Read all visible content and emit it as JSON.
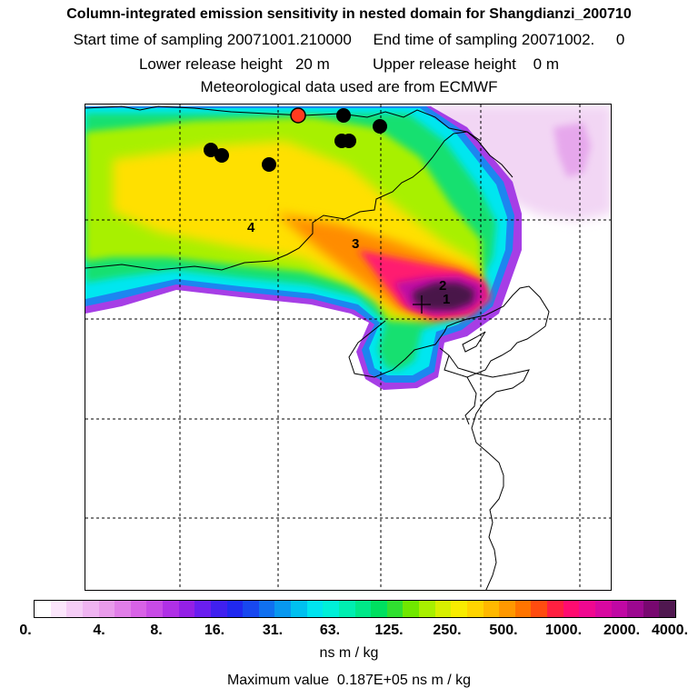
{
  "title": {
    "line1": "Column-integrated emission sensitivity in nested domain for Shangdianzi_200710",
    "line2": "Start time of sampling 20071001.210000     End time of sampling 20071002.     0",
    "line3": "Lower release height   20 m          Upper release height    0 m",
    "line4": "Meteorological data used are from ECMWF"
  },
  "map": {
    "labels": [
      "1",
      "2",
      "3",
      "4"
    ],
    "station_marker_color": "#ff3b1f",
    "point_marker_color": "#000000"
  },
  "legend": {
    "tick_labels": [
      "0.",
      "4.",
      "8.",
      "16.",
      "31.",
      "63.",
      "125.",
      "250.",
      "500.",
      "1000.",
      "2000.",
      "4000."
    ],
    "colors": [
      "#ffffff",
      "#fbe6fb",
      "#f5cdf6",
      "#efb4f1",
      "#e99beb",
      "#e17ee8",
      "#d862e6",
      "#c84be6",
      "#b030e6",
      "#9420e6",
      "#6a1ef0",
      "#4020f0",
      "#2028f0",
      "#1848f0",
      "#1070f0",
      "#0898f0",
      "#00c0f0",
      "#00e4f0",
      "#00f0d8",
      "#00eeb0",
      "#00e888",
      "#00e060",
      "#30e030",
      "#70e800",
      "#a8f000",
      "#d8f000",
      "#f8ec00",
      "#ffd400",
      "#ffb800",
      "#ff9800",
      "#ff7400",
      "#ff4c10",
      "#ff2040",
      "#ff0c70",
      "#f00890",
      "#d808a0",
      "#c008a4",
      "#9c0890",
      "#780870",
      "#501850"
    ],
    "units": "ns m / kg",
    "max_value_text": "Maximum value  0.187E+05 ns m / kg"
  }
}
